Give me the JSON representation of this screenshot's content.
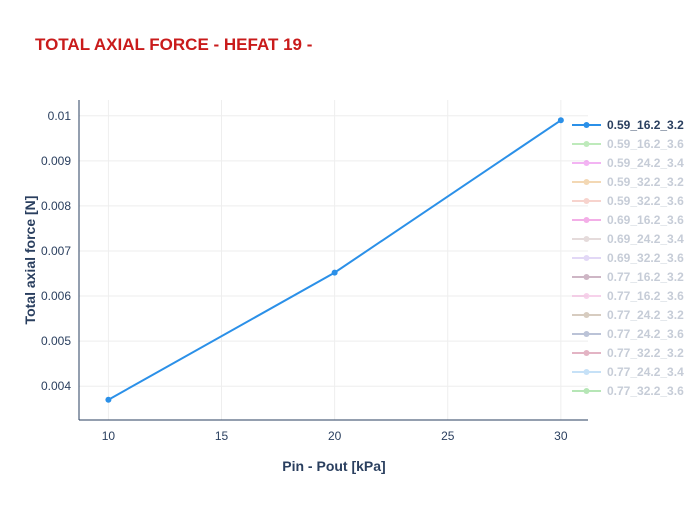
{
  "chart_data": {
    "type": "line",
    "title": "TOTAL AXIAL FORCE - HEFAT 19 -",
    "xlabel": "Pin - Pout [kPa]",
    "ylabel": "Total axial force [N]",
    "xlim": [
      8.7,
      31.2
    ],
    "ylim": [
      0.00325,
      0.01035
    ],
    "xticks": [
      10,
      15,
      20,
      25,
      30
    ],
    "xtick_labels": [
      "10",
      "15",
      "20",
      "25",
      "30"
    ],
    "yticks": [
      0.004,
      0.005,
      0.006,
      0.007,
      0.008,
      0.009,
      0.01
    ],
    "ytick_labels": [
      "0.004",
      "0.005",
      "0.006",
      "0.007",
      "0.008",
      "0.009",
      "0.01"
    ],
    "grid": true,
    "legend_position": "right",
    "series": [
      {
        "name": "0.59_16.2_3.2",
        "color": "#2b90e8",
        "visible": true,
        "x": [
          10,
          20,
          30
        ],
        "y": [
          0.0037,
          0.00652,
          0.0099
        ]
      },
      {
        "name": "0.59_16.2_3.6",
        "color": "#7fd67a",
        "visible": false,
        "x": [],
        "y": []
      },
      {
        "name": "0.59_24.2_3.4",
        "color": "#e86be8",
        "visible": false,
        "x": [],
        "y": []
      },
      {
        "name": "0.59_32.2_3.2",
        "color": "#e8b36b",
        "visible": false,
        "x": [],
        "y": []
      },
      {
        "name": "0.59_32.2_3.6",
        "color": "#f0a99c",
        "visible": false,
        "x": [],
        "y": []
      },
      {
        "name": "0.69_16.2_3.6",
        "color": "#e85fd0",
        "visible": false,
        "x": [],
        "y": []
      },
      {
        "name": "0.69_24.2_3.4",
        "color": "#cdb8b8",
        "visible": false,
        "x": [],
        "y": []
      },
      {
        "name": "0.69_32.2_3.6",
        "color": "#c7b3ee",
        "visible": false,
        "x": [],
        "y": []
      },
      {
        "name": "0.77_16.2_3.2",
        "color": "#9e6f8c",
        "visible": false,
        "x": [],
        "y": []
      },
      {
        "name": "0.77_16.2_3.6",
        "color": "#f0a6d8",
        "visible": false,
        "x": [],
        "y": []
      },
      {
        "name": "0.77_24.2_3.2",
        "color": "#b09a82",
        "visible": false,
        "x": [],
        "y": []
      },
      {
        "name": "0.77_24.2_3.6",
        "color": "#7a88b0",
        "visible": false,
        "x": [],
        "y": []
      },
      {
        "name": "0.77_32.2_3.2",
        "color": "#c96b8a",
        "visible": false,
        "x": [],
        "y": []
      },
      {
        "name": "0.77_24.2_3.4",
        "color": "#8ec4f0",
        "visible": false,
        "x": [],
        "y": []
      },
      {
        "name": "0.77_32.2_3.6",
        "color": "#6fcf6f",
        "visible": false,
        "x": [],
        "y": []
      }
    ]
  },
  "colors": {
    "title": "#c91b1b",
    "axis_text": "#2a3f5f",
    "grid": "#eeeeee",
    "legend_inactive_text": "#8e9bb0"
  }
}
